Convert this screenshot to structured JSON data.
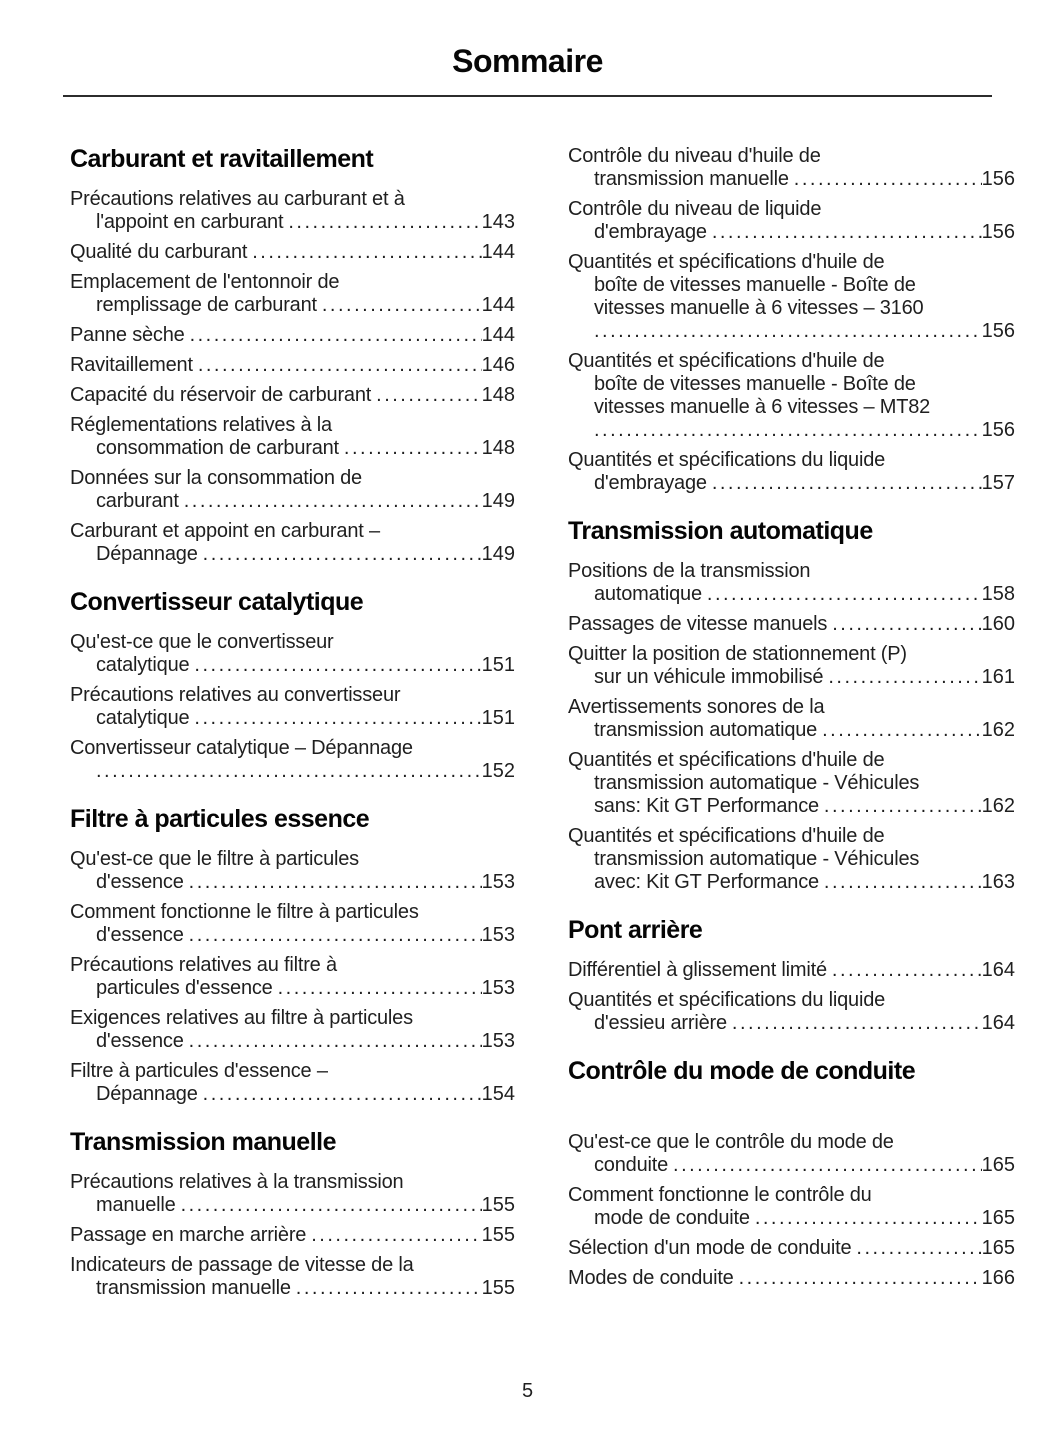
{
  "header": {
    "title": "Sommaire"
  },
  "footer": {
    "page_number": "5"
  },
  "theme": {
    "text_color": "#1f1f1f",
    "heading_color": "#050505",
    "background": "#ffffff"
  },
  "toc": {
    "columns": {
      "left": [
        {
          "heading": "Carburant et ravitaillement",
          "entries": [
            {
              "lines": [
                "Précautions relatives au carburant et à",
                "l'appoint en carburant"
              ],
              "page": "143"
            },
            {
              "lines": [
                "Qualité du carburant"
              ],
              "page": "144"
            },
            {
              "lines": [
                "Emplacement de l'entonnoir de",
                "remplissage de carburant"
              ],
              "page": "144"
            },
            {
              "lines": [
                "Panne sèche"
              ],
              "page": "144"
            },
            {
              "lines": [
                "Ravitaillement"
              ],
              "page": "146"
            },
            {
              "lines": [
                "Capacité du réservoir de carburant"
              ],
              "page": "148"
            },
            {
              "lines": [
                "Réglementations relatives à la",
                "consommation de carburant"
              ],
              "page": "148"
            },
            {
              "lines": [
                "Données sur la consommation de",
                "carburant"
              ],
              "page": "149"
            },
            {
              "lines": [
                "Carburant et appoint en carburant –",
                "Dépannage"
              ],
              "page": "149"
            }
          ]
        },
        {
          "heading": "Convertisseur catalytique",
          "entries": [
            {
              "lines": [
                "Qu'est-ce que le convertisseur",
                "catalytique"
              ],
              "page": "151"
            },
            {
              "lines": [
                "Précautions relatives au convertisseur",
                "catalytique"
              ],
              "page": "151"
            },
            {
              "lines": [
                "Convertisseur catalytique – Dépannage",
                ""
              ],
              "page": "152"
            }
          ]
        },
        {
          "heading": "Filtre à particules essence",
          "entries": [
            {
              "lines": [
                "Qu'est-ce que le filtre à particules",
                "d'essence"
              ],
              "page": "153"
            },
            {
              "lines": [
                "Comment fonctionne le filtre à particules",
                "d'essence"
              ],
              "page": "153"
            },
            {
              "lines": [
                "Précautions relatives au filtre à",
                "particules d'essence"
              ],
              "page": "153"
            },
            {
              "lines": [
                "Exigences relatives au filtre à particules",
                "d'essence"
              ],
              "page": "153"
            },
            {
              "lines": [
                "Filtre à particules d'essence –",
                "Dépannage"
              ],
              "page": "154"
            }
          ]
        },
        {
          "heading": "Transmission manuelle",
          "entries": [
            {
              "lines": [
                "Précautions relatives à la transmission",
                "manuelle"
              ],
              "page": "155"
            },
            {
              "lines": [
                "Passage en marche arrière"
              ],
              "page": "155"
            },
            {
              "lines": [
                "Indicateurs de passage de vitesse de la",
                "transmission manuelle"
              ],
              "page": "155"
            }
          ]
        }
      ],
      "right": [
        {
          "heading": null,
          "entries": [
            {
              "lines": [
                "Contrôle du niveau d'huile de",
                "transmission manuelle"
              ],
              "page": "156"
            },
            {
              "lines": [
                "Contrôle du niveau de liquide",
                "d'embrayage"
              ],
              "page": "156"
            },
            {
              "lines": [
                "Quantités et spécifications d'huile de",
                "boîte de vitesses manuelle - Boîte de",
                "vitesses manuelle à 6 vitesses – 3160",
                ""
              ],
              "page": "156"
            },
            {
              "lines": [
                "Quantités et spécifications d'huile de",
                "boîte de vitesses manuelle - Boîte de",
                "vitesses manuelle à 6 vitesses – MT82",
                ""
              ],
              "page": "156"
            },
            {
              "lines": [
                "Quantités et spécifications du liquide",
                "d'embrayage"
              ],
              "page": "157"
            }
          ]
        },
        {
          "heading": "Transmission automatique",
          "entries": [
            {
              "lines": [
                "Positions de la transmission",
                "automatique"
              ],
              "page": "158"
            },
            {
              "lines": [
                "Passages de vitesse manuels"
              ],
              "page": "160"
            },
            {
              "lines": [
                "Quitter la position de stationnement (P)",
                "sur un véhicule immobilisé"
              ],
              "page": "161"
            },
            {
              "lines": [
                "Avertissements sonores de la",
                "transmission automatique"
              ],
              "page": "162"
            },
            {
              "lines": [
                "Quantités et spécifications d'huile de",
                "transmission automatique - Véhicules",
                "sans: Kit GT Performance"
              ],
              "page": "162"
            },
            {
              "lines": [
                "Quantités et spécifications d'huile de",
                "transmission automatique - Véhicules",
                "avec: Kit GT Performance"
              ],
              "page": "163"
            }
          ]
        },
        {
          "heading": "Pont arrière",
          "entries": [
            {
              "lines": [
                "Différentiel à glissement limité"
              ],
              "page": "164"
            },
            {
              "lines": [
                "Quantités et spécifications du liquide",
                "d'essieu arrière"
              ],
              "page": "164"
            }
          ]
        },
        {
          "heading": "Contrôle du mode de conduite",
          "entries": [
            {
              "lines": [
                "Qu'est-ce que le contrôle du mode de",
                "conduite"
              ],
              "page": "165"
            },
            {
              "lines": [
                "Comment fonctionne le contrôle du",
                "mode de conduite"
              ],
              "page": "165"
            },
            {
              "lines": [
                "Sélection d'un mode de conduite"
              ],
              "page": "165"
            },
            {
              "lines": [
                "Modes de conduite"
              ],
              "page": "166"
            }
          ]
        }
      ]
    }
  }
}
